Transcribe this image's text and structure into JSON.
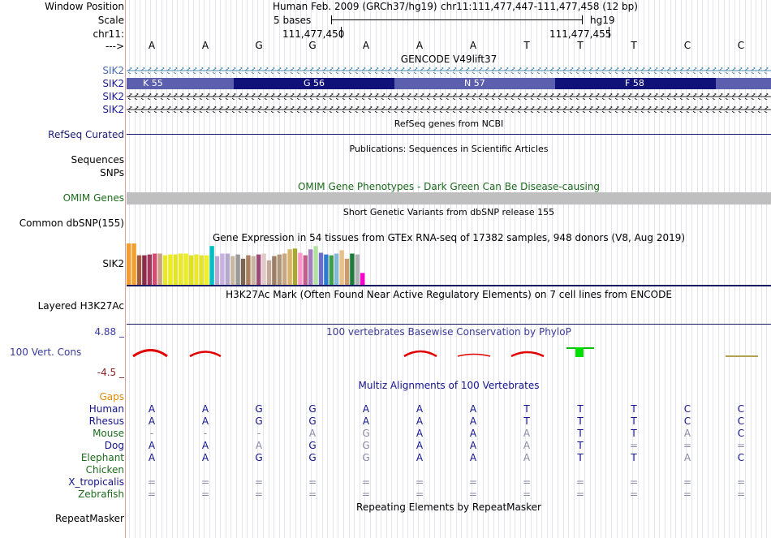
{
  "labels": {
    "window_position": "Window Position",
    "scale": "Scale",
    "chrom": "chr11:",
    "strand": "--->",
    "gencode_1": "SIK2",
    "gencode_2": "SIK2",
    "gencode_3": "SIK2",
    "gencode_4": "SIK2",
    "refseq": "RefSeq Curated",
    "sequences": "Sequences",
    "snps": "SNPs",
    "omim": "OMIM Genes",
    "dbsnp": "Common dbSNP(155)",
    "gtex": "SIK2",
    "h3k27ac": "Layered H3K27Ac",
    "cons_max": "4.88 _",
    "cons": "100 Vert. Cons",
    "cons_min": "-4.5 _",
    "gaps": "Gaps",
    "species": [
      "Human",
      "Rhesus",
      "Mouse",
      "Dog",
      "Elephant",
      "Chicken",
      "X_tropicalis",
      "Zebrafish"
    ],
    "repeatmasker": "RepeatMasker"
  },
  "header": {
    "assembly": "Human Feb. 2009 (GRCh37/hg19)",
    "position": "chr11:111,477,447-111,477,458 (12 bp)",
    "scale_text": "5 bases",
    "db": "hg19",
    "coord_left": "111,477,450",
    "coord_right": "111,477,455"
  },
  "bases": [
    "A",
    "A",
    "G",
    "G",
    "A",
    "A",
    "A",
    "T",
    "T",
    "T",
    "C",
    "C"
  ],
  "titles": {
    "gencode": "GENCODE V49lift37",
    "refseq": "RefSeq genes from NCBI",
    "publications": "Publications: Sequences in Scientific Articles",
    "omim": "OMIM Gene Phenotypes - Dark Green Can Be Disease-causing",
    "dbsnp": "Short Genetic Variants from dbSNP release 155",
    "gtex": "Gene Expression in 54 tissues from GTEx RNA-seq of 17382 samples, 948 donors (V8, Aug 2019)",
    "h3k27ac": "H3K27Ac Mark (Often Found Near Active Regulatory Elements) on 7 cell lines from ENCODE",
    "cons": "100 vertebrates Basewise Conservation by PhyloP",
    "multiz": "Multiz Alignments of 100 Vertebrates",
    "repeatmasker": "Repeating Elements by RepeatMasker"
  },
  "codons": [
    {
      "label": "K 55",
      "shade": "light"
    },
    {
      "label": "G 56",
      "shade": "dark"
    },
    {
      "label": "N 57",
      "shade": "light"
    },
    {
      "label": "F 58",
      "shade": "dark"
    }
  ],
  "alignment": {
    "Human": [
      "A",
      "A",
      "G",
      "G",
      "A",
      "A",
      "A",
      "T",
      "T",
      "T",
      "C",
      "C"
    ],
    "Rhesus": [
      "A",
      "A",
      "G",
      "G",
      "A",
      "A",
      "A",
      "T",
      "T",
      "T",
      "C",
      "C"
    ],
    "Mouse": [
      "-",
      "-",
      "-",
      "A",
      "G",
      "A",
      "A",
      "A",
      "T",
      "T",
      "A",
      "C"
    ],
    "Dog": [
      "A",
      "A",
      "A",
      "G",
      "G",
      "A",
      "A",
      "A",
      "T",
      "=",
      "=",
      "="
    ],
    "Elephant": [
      "A",
      "A",
      "G",
      "G",
      "G",
      "A",
      "A",
      "A",
      "T",
      "T",
      "A",
      "C"
    ],
    "Chicken": [
      "",
      "",
      "",
      "",
      "",
      "",
      "",
      "",
      "",
      "",
      "",
      ""
    ],
    "X_tropicalis": [
      "=",
      "=",
      "=",
      "=",
      "=",
      "=",
      "=",
      "=",
      "=",
      "=",
      "=",
      "="
    ],
    "Zebrafish": [
      "=",
      "=",
      "=",
      "=",
      "=",
      "=",
      "=",
      "=",
      "=",
      "=",
      "=",
      "="
    ]
  },
  "alignment_dim": {
    "Mouse": [
      1,
      1,
      1,
      1,
      1,
      0,
      0,
      1,
      0,
      0,
      1,
      0
    ],
    "Dog": [
      0,
      0,
      1,
      0,
      1,
      0,
      0,
      1,
      0,
      1,
      1,
      1
    ],
    "Elephant": [
      0,
      0,
      0,
      0,
      1,
      0,
      0,
      1,
      0,
      0,
      1,
      0
    ]
  },
  "gtex_colors": [
    "#f39c32",
    "#f2a02d",
    "#a05a3c",
    "#8b2c4a",
    "#a6355b",
    "#d44c71",
    "#c8a288",
    "#e8e828",
    "#eded1e",
    "#e5e521",
    "#e8e82e",
    "#eded25",
    "#e0e020",
    "#eaea2a",
    "#e3e328",
    "#f0f028",
    "#00bfc5",
    "#bba9d4",
    "#c8b2df",
    "#b5a8cf",
    "#c9b7a1",
    "#999999",
    "#7a6653",
    "#aa8060",
    "#cbb4a0",
    "#9d4c77",
    "#e2c8c8",
    "#c3a99a",
    "#9b7f67",
    "#b09577",
    "#c7a882",
    "#d9b36a",
    "#a9a930",
    "#ff96c8",
    "#c25e8e",
    "#a67dc1",
    "#b2e2a0",
    "#6e6ec8",
    "#2a7bd2",
    "#3fa04b",
    "#85b8d8",
    "#e8c08a",
    "#cf9a69",
    "#1c7c3a",
    "#b2b2b2",
    "#ff00cc"
  ],
  "gtex_values": [
    0.98,
    0.98,
    0.7,
    0.7,
    0.72,
    0.74,
    0.74,
    0.7,
    0.72,
    0.72,
    0.74,
    0.74,
    0.7,
    0.72,
    0.7,
    0.7,
    0.92,
    0.68,
    0.74,
    0.74,
    0.68,
    0.72,
    0.62,
    0.7,
    0.68,
    0.72,
    0.74,
    0.58,
    0.68,
    0.72,
    0.74,
    0.84,
    0.86,
    0.76,
    0.7,
    0.84,
    0.92,
    0.76,
    0.72,
    0.7,
    0.74,
    0.82,
    0.62,
    0.74,
    0.72,
    0.28
  ]
}
